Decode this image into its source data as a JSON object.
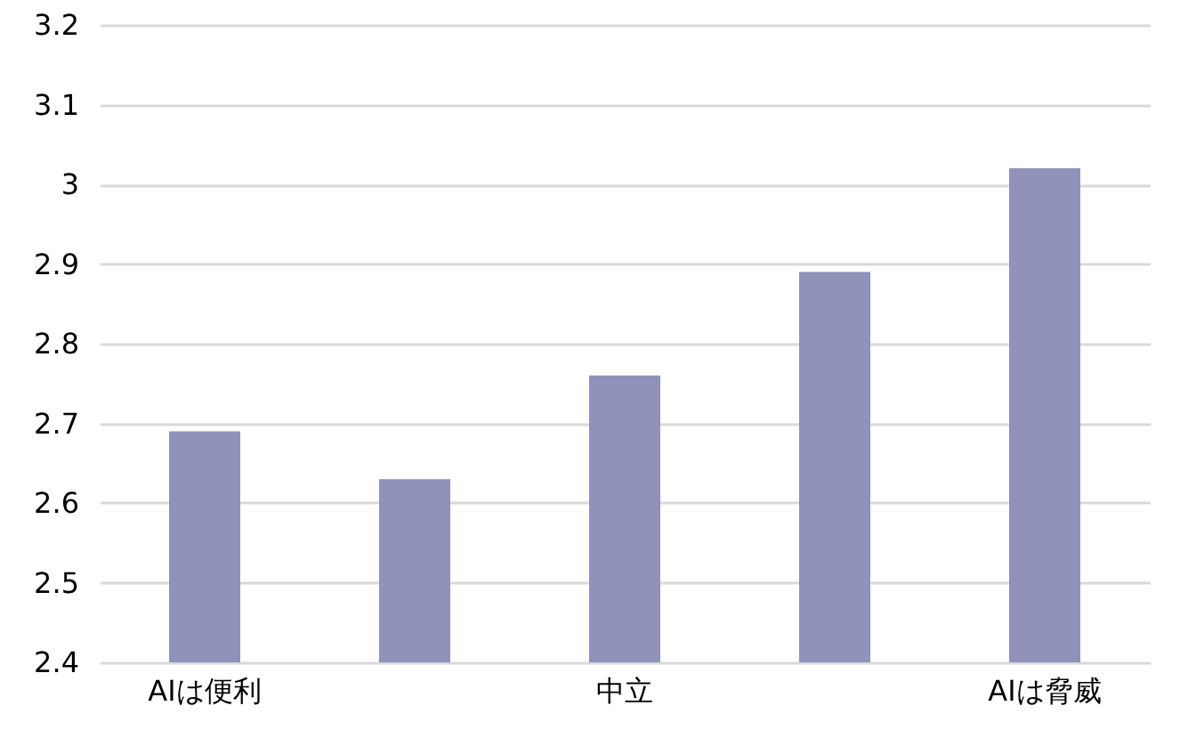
{
  "chart_data": {
    "type": "bar",
    "categories": [
      "AIは便利",
      null,
      "中立",
      null,
      "AIは脅威"
    ],
    "values": [
      2.69,
      2.63,
      2.76,
      2.89,
      3.02
    ],
    "color": "#9092b9",
    "ylim": [
      2.4,
      3.2
    ],
    "yticks": [
      2.4,
      2.5,
      2.6,
      2.7,
      2.8,
      2.9,
      3,
      3.1,
      3.2
    ],
    "grid": "y"
  }
}
